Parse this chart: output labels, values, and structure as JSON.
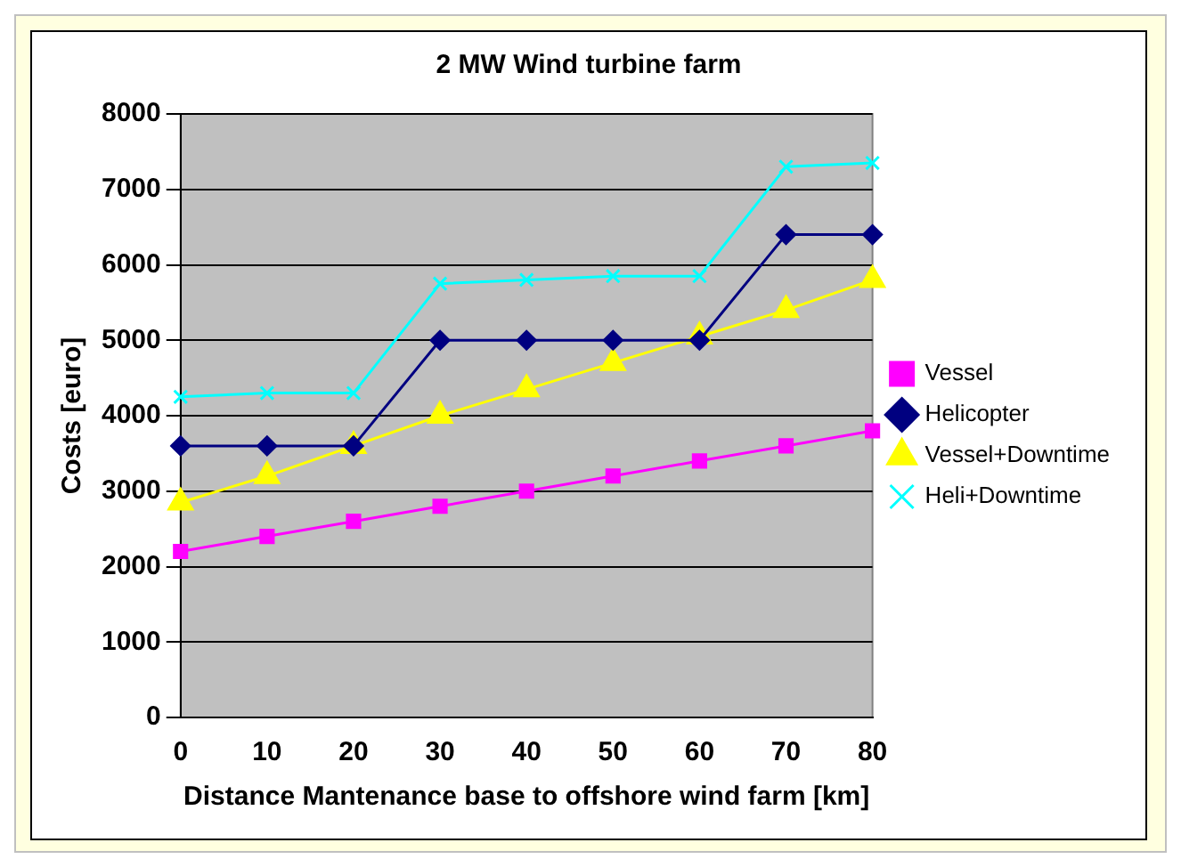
{
  "chart_data": {
    "type": "line",
    "title": "2 MW Wind turbine farm",
    "xlabel": "Distance Mantenance base to offshore wind farm [km]",
    "ylabel": "Costs [euro]",
    "categories": [
      "0",
      "10",
      "20",
      "30",
      "40",
      "50",
      "60",
      "70",
      "80"
    ],
    "ylim": [
      0,
      8000
    ],
    "yticks": [
      0,
      1000,
      2000,
      3000,
      4000,
      5000,
      6000,
      7000,
      8000
    ],
    "grid": "y",
    "legend": "right",
    "series": [
      {
        "name": "Vessel",
        "color": "#ff00ff",
        "marker": "square",
        "values": [
          2200,
          2400,
          2600,
          2800,
          3000,
          3200,
          3400,
          3600,
          3800
        ]
      },
      {
        "name": "Helicopter",
        "color": "#000080",
        "marker": "diamond",
        "values": [
          3600,
          3600,
          3600,
          5000,
          5000,
          5000,
          5000,
          6400,
          6400
        ]
      },
      {
        "name": "Vessel+Downtime",
        "color": "#ffff00",
        "marker": "triangle",
        "values": [
          2850,
          3200,
          3600,
          4000,
          4350,
          4700,
          5050,
          5400,
          5800
        ]
      },
      {
        "name": "Heli+Downtime",
        "color": "#00ffff",
        "marker": "cross",
        "values": [
          4250,
          4300,
          4300,
          5750,
          5800,
          5850,
          5850,
          7300,
          7350
        ]
      }
    ]
  }
}
